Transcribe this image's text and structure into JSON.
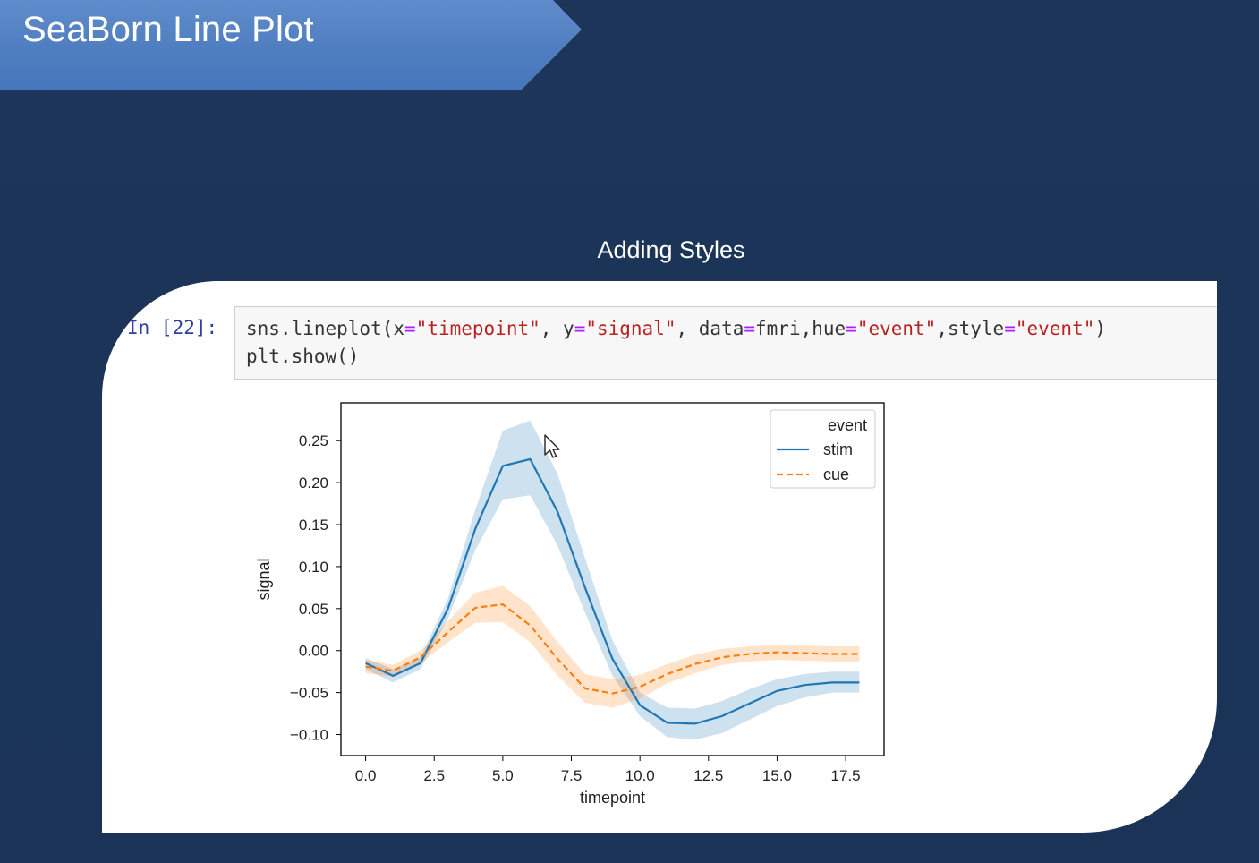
{
  "slide": {
    "title": "SeaBorn Line Plot",
    "subtitle": "Adding Styles",
    "colors": {
      "background": "#1c3559",
      "banner": "#4f7ec0"
    }
  },
  "cell": {
    "prompt": "In [22]:",
    "code": {
      "line1": [
        {
          "t": "sns.lineplot(x",
          "k": "plain"
        },
        {
          "t": "=",
          "k": "op"
        },
        {
          "t": "\"timepoint\"",
          "k": "str"
        },
        {
          "t": ", y",
          "k": "plain"
        },
        {
          "t": "=",
          "k": "op"
        },
        {
          "t": "\"signal\"",
          "k": "str"
        },
        {
          "t": ", data",
          "k": "plain"
        },
        {
          "t": "=",
          "k": "op"
        },
        {
          "t": "fmri,hue",
          "k": "plain"
        },
        {
          "t": "=",
          "k": "op"
        },
        {
          "t": "\"event\"",
          "k": "str"
        },
        {
          "t": ",style",
          "k": "plain"
        },
        {
          "t": "=",
          "k": "op"
        },
        {
          "t": "\"event\"",
          "k": "str"
        },
        {
          "t": ")",
          "k": "plain"
        }
      ],
      "line2": [
        {
          "t": "plt.show()",
          "k": "plain"
        }
      ]
    }
  },
  "chart_data": {
    "type": "line",
    "title": "",
    "xlabel": "timepoint",
    "ylabel": "signal",
    "xlim": [
      -0.9,
      18.9
    ],
    "ylim": [
      -0.125,
      0.295
    ],
    "xticks": [
      0,
      2.5,
      5,
      7.5,
      10,
      12.5,
      15,
      17.5
    ],
    "xtick_labels": [
      "0.0",
      "2.5",
      "5.0",
      "7.5",
      "10.0",
      "12.5",
      "15.0",
      "17.5"
    ],
    "yticks": [
      -0.1,
      -0.05,
      0.0,
      0.05,
      0.1,
      0.15,
      0.2,
      0.25
    ],
    "ytick_labels": [
      "−0.10",
      "−0.05",
      "0.00",
      "0.05",
      "0.10",
      "0.15",
      "0.20",
      "0.25"
    ],
    "x": [
      0,
      1,
      2,
      3,
      4,
      5,
      6,
      7,
      8,
      9,
      10,
      11,
      12,
      13,
      14,
      15,
      16,
      17,
      18
    ],
    "legend": {
      "title": "event",
      "position": "top-right"
    },
    "series": [
      {
        "name": "stim",
        "color": "#1f77b4",
        "dash": "solid",
        "values": [
          -0.015,
          -0.03,
          -0.015,
          0.05,
          0.145,
          0.22,
          0.228,
          0.165,
          0.075,
          -0.01,
          -0.065,
          -0.086,
          -0.087,
          -0.078,
          -0.063,
          -0.048,
          -0.041,
          -0.038,
          -0.038
        ],
        "ci_low": [
          -0.022,
          -0.038,
          -0.022,
          0.038,
          0.12,
          0.18,
          0.185,
          0.125,
          0.045,
          -0.03,
          -0.078,
          -0.103,
          -0.106,
          -0.098,
          -0.082,
          -0.066,
          -0.056,
          -0.05,
          -0.05
        ],
        "ci_high": [
          -0.009,
          -0.022,
          -0.008,
          0.062,
          0.168,
          0.262,
          0.274,
          0.21,
          0.11,
          0.012,
          -0.05,
          -0.068,
          -0.069,
          -0.06,
          -0.046,
          -0.034,
          -0.028,
          -0.025,
          -0.025
        ]
      },
      {
        "name": "cue",
        "color": "#ff7f0e",
        "dash": "dashed",
        "values": [
          -0.019,
          -0.024,
          -0.008,
          0.022,
          0.051,
          0.055,
          0.03,
          -0.01,
          -0.045,
          -0.051,
          -0.043,
          -0.028,
          -0.016,
          -0.008,
          -0.004,
          -0.002,
          -0.003,
          -0.004,
          -0.004
        ],
        "ci_low": [
          -0.027,
          -0.031,
          -0.015,
          0.01,
          0.033,
          0.034,
          0.01,
          -0.03,
          -0.062,
          -0.068,
          -0.057,
          -0.039,
          -0.027,
          -0.017,
          -0.013,
          -0.011,
          -0.012,
          -0.013,
          -0.013
        ],
        "ci_high": [
          -0.011,
          -0.017,
          0.0,
          0.035,
          0.069,
          0.077,
          0.053,
          0.01,
          -0.028,
          -0.034,
          -0.029,
          -0.016,
          -0.005,
          0.002,
          0.005,
          0.007,
          0.006,
          0.005,
          0.005
        ]
      }
    ]
  }
}
